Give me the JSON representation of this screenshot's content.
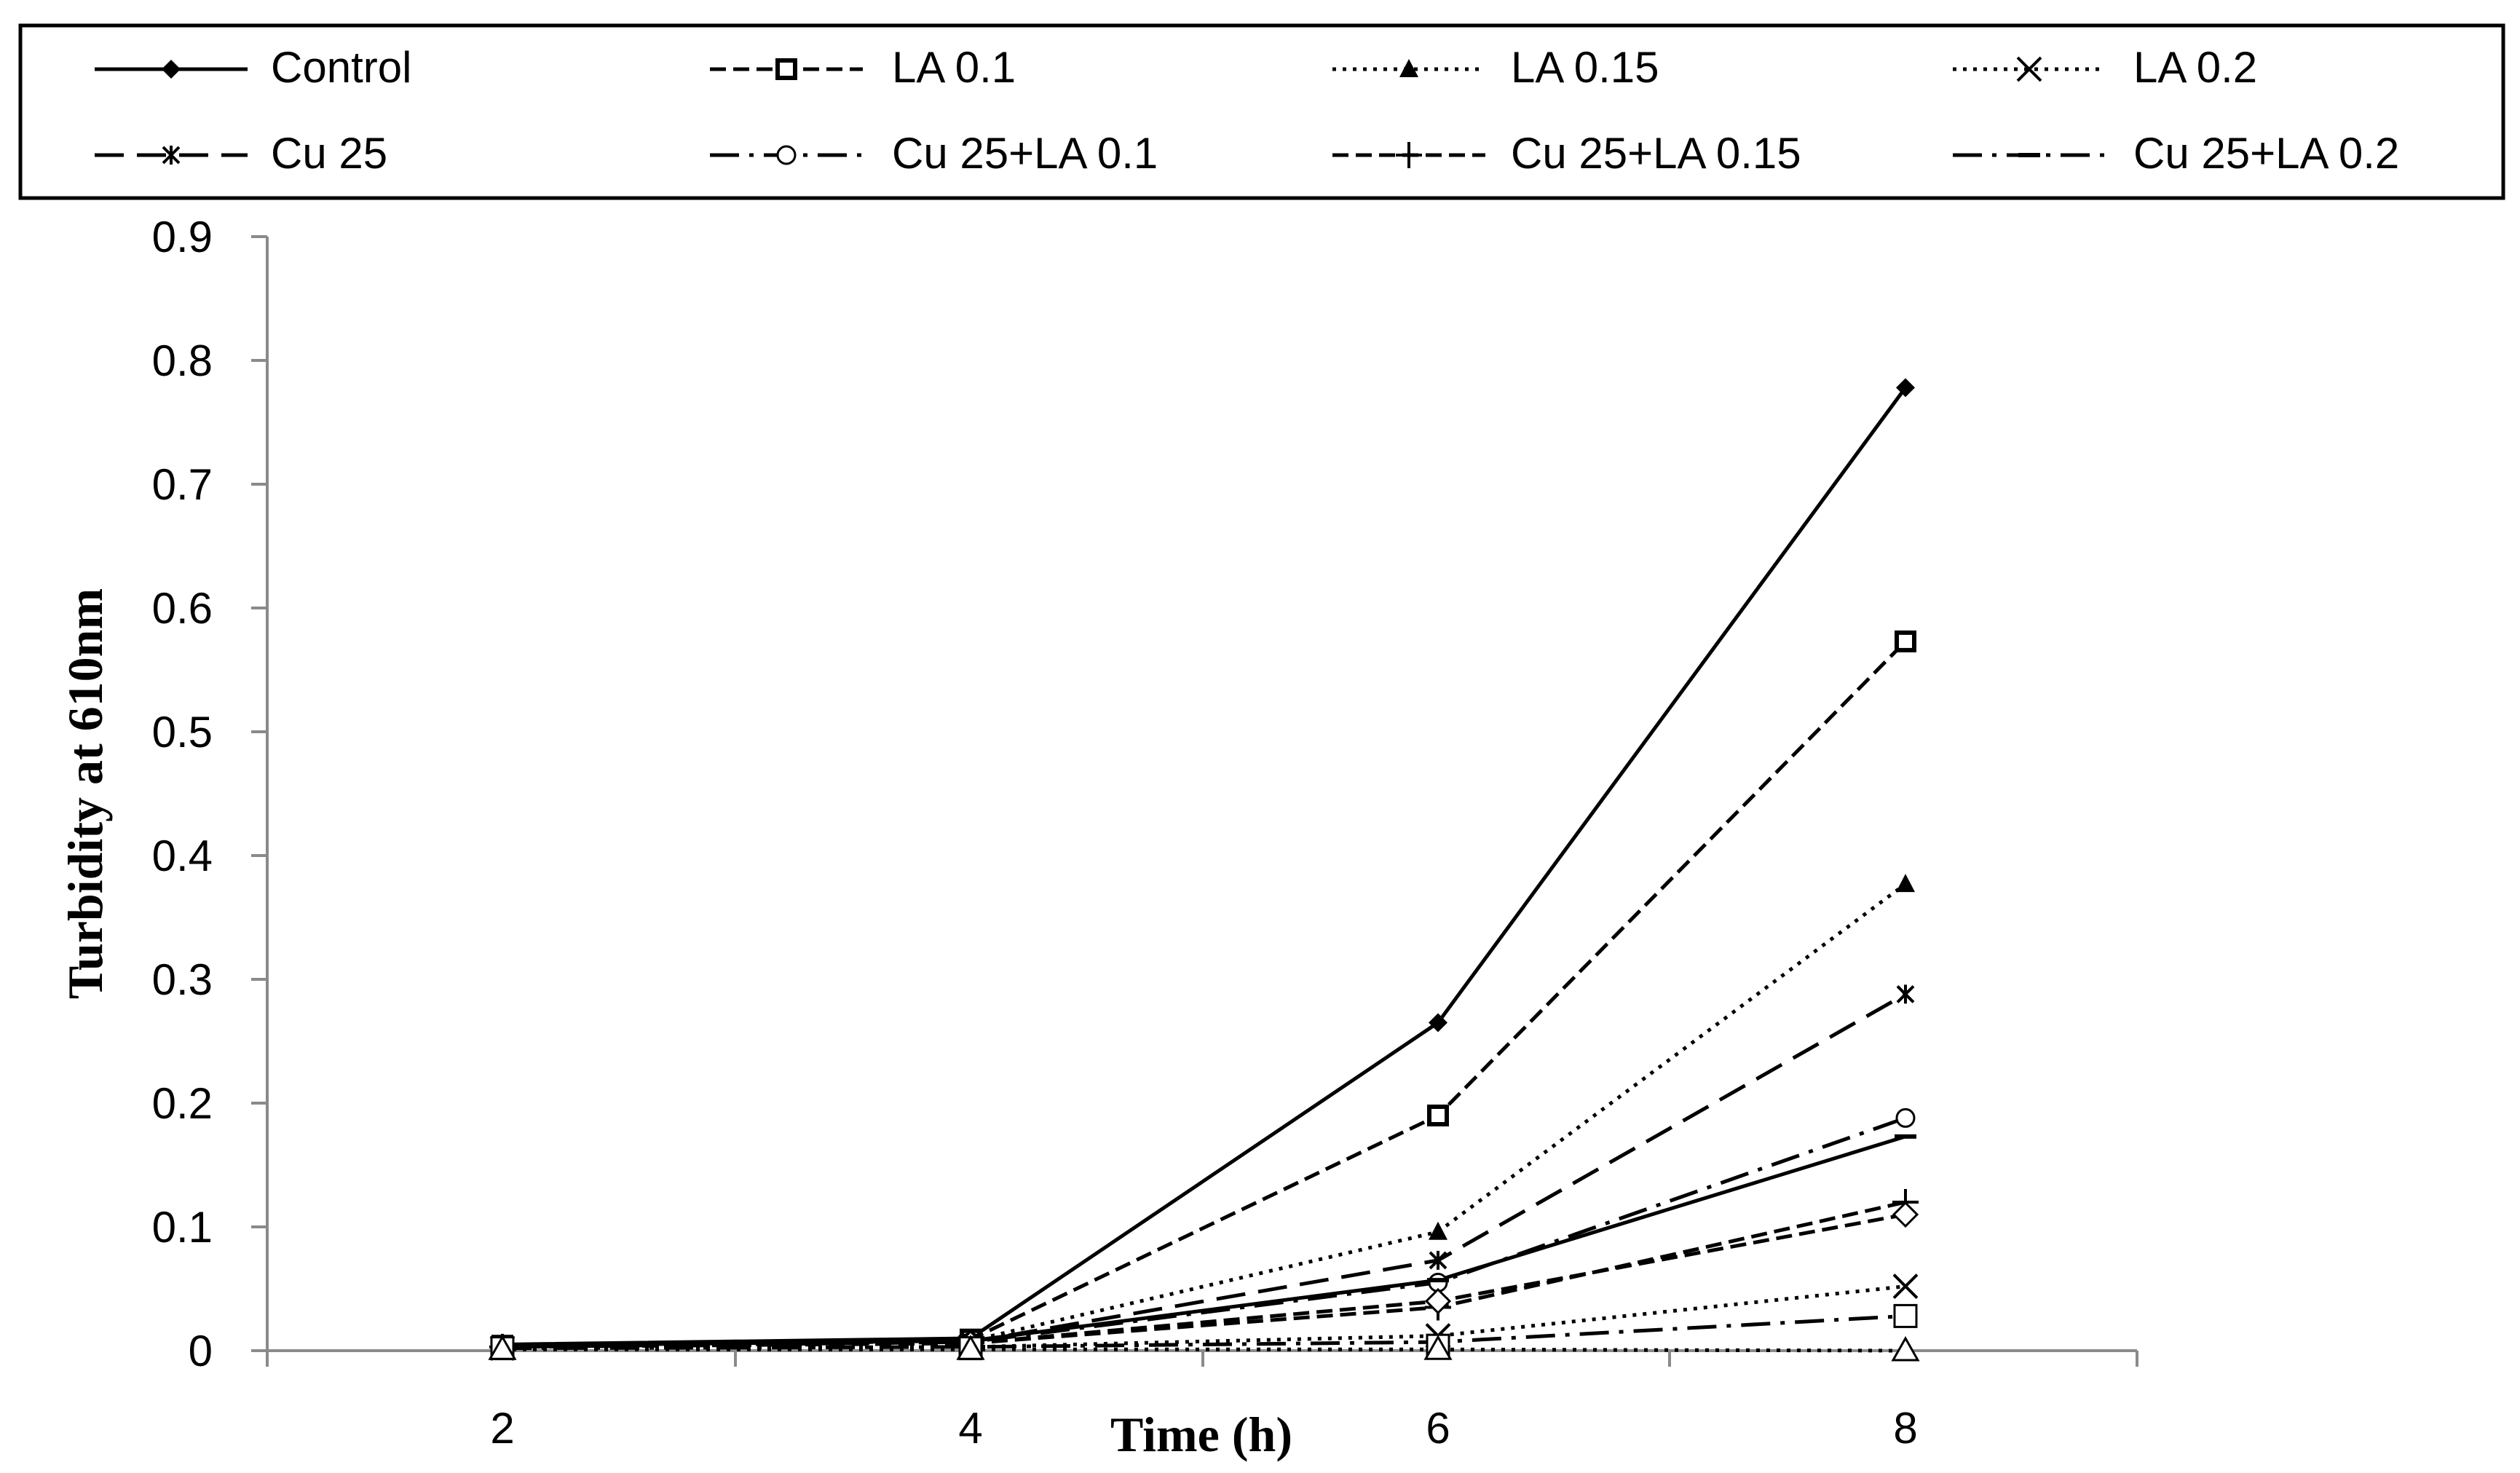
{
  "chart_data": {
    "type": "line",
    "title": "",
    "xlabel": "Time (h)",
    "ylabel": "Turbidity at 610nm",
    "x": [
      2,
      4,
      6,
      8
    ],
    "ylim": [
      0,
      0.9
    ],
    "yticks": [
      0,
      0.1,
      0.2,
      0.3,
      0.4,
      0.5,
      0.6,
      0.7,
      0.8,
      0.9
    ],
    "ytick_labels": [
      "0",
      "0.1",
      "0.2",
      "0.3",
      "0.4",
      "0.5",
      "0.6",
      "0.7",
      "0.8",
      "0.9"
    ],
    "xtick_labels": [
      "2",
      "4",
      "6",
      "8"
    ],
    "grid": false,
    "legend_position": "top",
    "series": [
      {
        "name": "Control",
        "values": [
          0.005,
          0.01,
          0.265,
          0.778
        ],
        "dash": "solid",
        "marker": "diamond-filled"
      },
      {
        "name": "LA 0.1",
        "values": [
          0.004,
          0.009,
          0.19,
          0.573
        ],
        "dash": "dash-short",
        "marker": "square-bold"
      },
      {
        "name": "LA 0.15",
        "values": [
          0.003,
          0.008,
          0.096,
          0.377
        ],
        "dash": "dot",
        "marker": "triangle-filled"
      },
      {
        "name": "LA 0.2",
        "values": [
          0.002,
          0.003,
          0.012,
          0.052
        ],
        "dash": "dot",
        "marker": "x"
      },
      {
        "name": "Cu 25",
        "values": [
          0.003,
          0.007,
          0.073,
          0.288
        ],
        "dash": "dash-long",
        "marker": "asterisk"
      },
      {
        "name": "Cu 25+LA 0.1",
        "values": [
          0.003,
          0.007,
          0.055,
          0.188
        ],
        "dash": "dash-dot",
        "marker": "circle-open"
      },
      {
        "name": "Cu 25+LA 0.15",
        "values": [
          0.003,
          0.006,
          0.035,
          0.12
        ],
        "dash": "dash-short",
        "marker": "plus"
      },
      {
        "name": "Cu 25+LA 0.2",
        "values": [
          0.002,
          0.003,
          0.007,
          0.028
        ],
        "dash": "dash-dot",
        "marker": "dash"
      },
      {
        "name": "",
        "values": [
          0.004,
          0.008,
          0.057,
          0.173
        ],
        "dash": "solid",
        "marker": "dash"
      },
      {
        "name": "",
        "values": [
          0.003,
          0.006,
          0.04,
          0.11
        ],
        "dash": "dash-short",
        "marker": "diamond-open"
      },
      {
        "name": "",
        "values": [
          0.002,
          0.002,
          0.004,
          0.028
        ],
        "dash": "none",
        "marker": "square-open"
      },
      {
        "name": "",
        "values": [
          0.001,
          0.001,
          0.001,
          0.0
        ],
        "dash": "dot",
        "marker": "triangle-open"
      }
    ]
  },
  "legend": {
    "items": [
      "Control",
      "LA 0.1",
      "LA 0.15",
      "LA 0.2",
      "Cu 25",
      "Cu 25+LA 0.1",
      "Cu 25+LA 0.15",
      "Cu 25+LA 0.2"
    ]
  }
}
